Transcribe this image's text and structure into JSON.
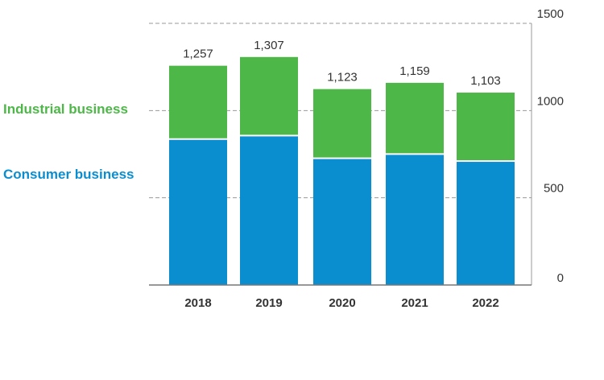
{
  "chart_data": {
    "type": "bar",
    "stacked": true,
    "categories": [
      "2018",
      "2019",
      "2020",
      "2021",
      "2022"
    ],
    "series": [
      {
        "name": "Consumer business",
        "color": "#0b8ed0",
        "values": [
          832,
          852,
          722,
          746,
          706
        ]
      },
      {
        "name": "Industrial business",
        "color": "#4db848",
        "values": [
          425,
          455,
          401,
          413,
          397
        ]
      }
    ],
    "totals": [
      "1,257",
      "1,307",
      "1,123",
      "1,159",
      "1,103"
    ],
    "yticks": [
      "0",
      "500",
      "1000",
      "1500"
    ],
    "ylim": [
      0,
      1500
    ],
    "y_axis_position": "right",
    "grid": "dashed"
  }
}
